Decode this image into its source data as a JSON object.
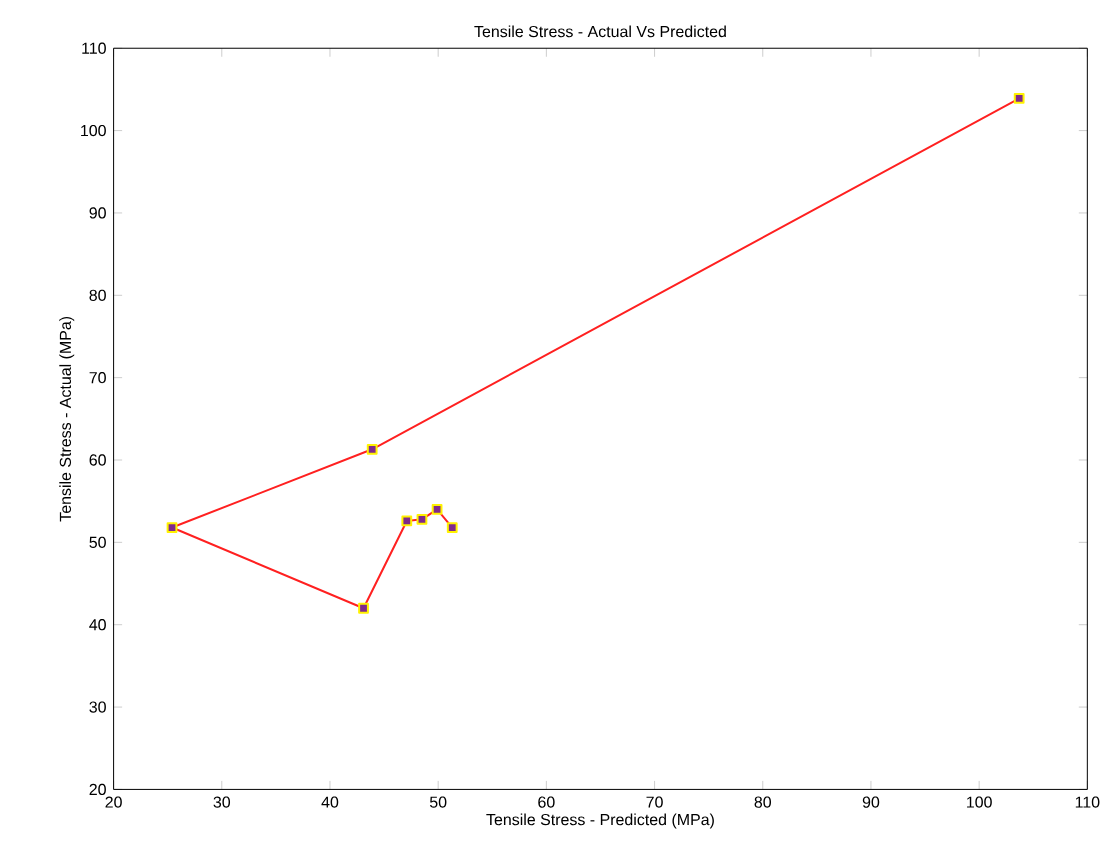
{
  "chart_data": {
    "type": "line",
    "title": "Tensile Stress - Actual Vs Predicted",
    "xlabel": "Tensile Stress - Predicted (MPa)",
    "ylabel": "Tensile Stress - Actual (MPa)",
    "x": [
      103.7,
      43.9,
      25.4,
      43.1,
      47.1,
      48.5,
      49.9,
      51.3
    ],
    "series": [
      {
        "color": "#ff2020",
        "values": [
          103.9,
          61.3,
          51.8,
          42.0,
          52.6,
          52.8,
          54.0,
          51.8
        ]
      }
    ],
    "marker": "square",
    "line_style": "solid",
    "xlim": [
      20,
      110
    ],
    "xticks": [
      20,
      30,
      40,
      50,
      60,
      70,
      80,
      90,
      100,
      110
    ],
    "ylim": [
      20,
      110
    ],
    "yticks": [
      20,
      30,
      40,
      50,
      60,
      70,
      80,
      90,
      100,
      110
    ]
  }
}
